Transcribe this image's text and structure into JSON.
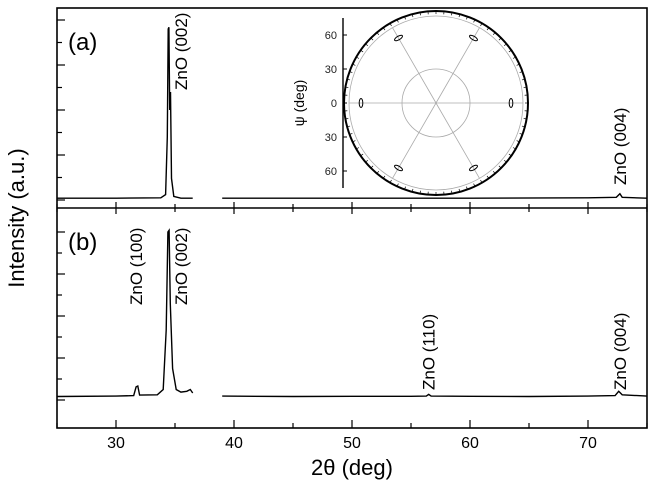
{
  "chart_data": [
    {
      "type": "line",
      "panel_label": "(a)",
      "xlim": [
        25,
        75
      ],
      "x_gap": [
        36.5,
        39
      ],
      "ylim": [
        0,
        1.0
      ],
      "series": [
        {
          "points": [
            [
              25,
              0.01
            ],
            [
              30,
              0.01
            ],
            [
              33.8,
              0.012
            ],
            [
              34.2,
              0.03
            ],
            [
              34.35,
              0.35
            ],
            [
              34.42,
              0.95
            ],
            [
              34.48,
              0.96
            ],
            [
              34.55,
              0.5
            ],
            [
              34.62,
              0.6
            ],
            [
              34.7,
              0.12
            ],
            [
              34.9,
              0.02
            ],
            [
              35.5,
              0.01
            ],
            [
              36.5,
              0.01
            ],
            [
              39,
              0.01
            ],
            [
              50,
              0.01
            ],
            [
              60,
              0.01
            ],
            [
              70,
              0.012
            ],
            [
              72.4,
              0.015
            ],
            [
              72.7,
              0.035
            ],
            [
              72.9,
              0.015
            ],
            [
              75,
              0.01
            ]
          ]
        }
      ],
      "annotations": [
        {
          "text": "ZnO (002)",
          "x": 35.5
        },
        {
          "text": "ZnO (004)",
          "x": 72.7
        }
      ],
      "inset": {
        "type": "polar",
        "ylabel": "ψ (deg)",
        "yticks": [
          "60",
          "30",
          "0",
          "30",
          "60"
        ]
      }
    },
    {
      "type": "line",
      "panel_label": "(b)",
      "xlim": [
        25,
        75
      ],
      "x_gap": [
        36.5,
        39
      ],
      "ylim": [
        0,
        1.0
      ],
      "series": [
        {
          "points": [
            [
              25,
              0.02
            ],
            [
              30,
              0.022
            ],
            [
              31.5,
              0.025
            ],
            [
              31.7,
              0.075
            ],
            [
              31.85,
              0.08
            ],
            [
              32,
              0.028
            ],
            [
              33.5,
              0.03
            ],
            [
              34,
              0.06
            ],
            [
              34.25,
              0.4
            ],
            [
              34.4,
              0.96
            ],
            [
              34.5,
              0.97
            ],
            [
              34.6,
              0.55
            ],
            [
              34.8,
              0.18
            ],
            [
              35.1,
              0.06
            ],
            [
              35.5,
              0.045
            ],
            [
              36,
              0.05
            ],
            [
              36.3,
              0.06
            ],
            [
              36.5,
              0.04
            ],
            [
              39,
              0.022
            ],
            [
              45,
              0.02
            ],
            [
              50,
              0.021
            ],
            [
              55,
              0.021
            ],
            [
              56.3,
              0.022
            ],
            [
              56.5,
              0.032
            ],
            [
              56.7,
              0.022
            ],
            [
              60,
              0.021
            ],
            [
              65,
              0.02
            ],
            [
              70,
              0.022
            ],
            [
              72.3,
              0.025
            ],
            [
              72.6,
              0.05
            ],
            [
              72.9,
              0.03
            ],
            [
              75,
              0.022
            ]
          ]
        }
      ],
      "annotations": [
        {
          "text": "ZnO (100)",
          "x": 31.7
        },
        {
          "text": "ZnO (002)",
          "x": 35.5
        },
        {
          "text": "ZnO (110)",
          "x": 56.5
        },
        {
          "text": "ZnO (004)",
          "x": 72.7
        }
      ]
    }
  ],
  "axes": {
    "xlabel": "2θ (deg)",
    "ylabel": "Intensity (a.u.)",
    "xticks": [
      30,
      40,
      50,
      60,
      70
    ]
  }
}
